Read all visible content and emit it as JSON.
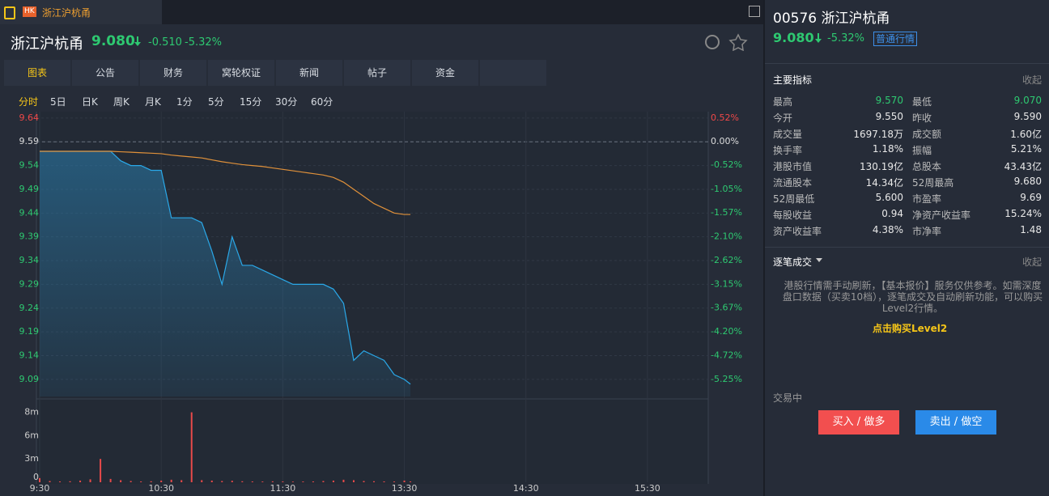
{
  "tab": {
    "badge": "HK",
    "title": "浙江沪杭甬"
  },
  "header": {
    "name": "浙江沪杭甬",
    "price": "9.080",
    "change": "-0.510",
    "change_pct": "-5.32%"
  },
  "nav_tabs": [
    "图表",
    "公告",
    "财务",
    "窝轮权证",
    "新闻",
    "帖子",
    "资金"
  ],
  "periods": [
    "分时",
    "5日",
    "日K",
    "周K",
    "月K",
    "1分",
    "5分",
    "15分",
    "30分",
    "60分"
  ],
  "chart_data": [
    {
      "type": "line",
      "x": [
        "9:30",
        "9:35",
        "9:40",
        "9:45",
        "9:50",
        "9:55",
        "10:00",
        "10:05",
        "10:10",
        "10:15",
        "10:20",
        "10:25",
        "10:30",
        "10:35",
        "10:40",
        "10:45",
        "10:50",
        "10:55",
        "11:00",
        "11:05",
        "11:10",
        "11:15",
        "11:20",
        "11:25",
        "11:30",
        "11:35",
        "11:40",
        "11:45",
        "11:50",
        "11:55",
        "12:00",
        "13:05",
        "13:10",
        "13:15",
        "13:20",
        "13:25",
        "13:30",
        "13:33"
      ],
      "series": [
        {
          "color": "#2aa8e8",
          "area": true,
          "values": [
            9.57,
            9.57,
            9.57,
            9.57,
            9.57,
            9.57,
            9.57,
            9.57,
            9.55,
            9.54,
            9.54,
            9.53,
            9.53,
            9.43,
            9.43,
            9.43,
            9.42,
            9.36,
            9.29,
            9.39,
            9.33,
            9.33,
            9.32,
            9.31,
            9.3,
            9.29,
            9.29,
            9.29,
            9.29,
            9.28,
            9.25,
            9.13,
            9.15,
            9.14,
            9.13,
            9.1,
            9.09,
            9.08
          ]
        },
        {
          "color": "#e0913a",
          "values": [
            9.57,
            9.57,
            9.57,
            9.57,
            9.57,
            9.57,
            9.57,
            9.57,
            9.569,
            9.568,
            9.567,
            9.566,
            9.565,
            9.562,
            9.56,
            9.558,
            9.556,
            9.552,
            9.548,
            9.545,
            9.542,
            9.54,
            9.538,
            9.535,
            9.532,
            9.529,
            9.526,
            9.523,
            9.52,
            9.515,
            9.505,
            9.49,
            9.475,
            9.46,
            9.45,
            9.44,
            9.437,
            9.437
          ]
        }
      ],
      "xlim": [
        "9:30",
        "16:00"
      ],
      "ylim": [
        9.054,
        9.65
      ],
      "yticks": [
        9.64,
        9.59,
        9.54,
        9.49,
        9.44,
        9.39,
        9.34,
        9.29,
        9.24,
        9.19,
        9.14,
        9.09
      ],
      "baseline": 9.59,
      "y2lim": [
        -5.625,
        0.627
      ],
      "y2ticks": [
        {
          "value": 0.52,
          "label": "0.52%"
        },
        {
          "value": 0,
          "label": "0.00%"
        },
        {
          "value": -0.52,
          "label": "-0.52%"
        },
        {
          "value": -1.05,
          "label": "-1.05%"
        },
        {
          "value": -1.57,
          "label": "-1.57%"
        },
        {
          "value": -2.1,
          "label": "-2.10%"
        },
        {
          "value": -2.62,
          "label": "-2.62%"
        },
        {
          "value": -3.15,
          "label": "-3.15%"
        },
        {
          "value": -3.67,
          "label": "-3.67%"
        },
        {
          "value": -4.2,
          "label": "-4.20%"
        },
        {
          "value": -4.72,
          "label": "-4.72%"
        },
        {
          "value": -5.25,
          "label": "-5.25%"
        }
      ],
      "grid": true
    },
    {
      "type": "bar",
      "color": "#e84a4a",
      "values": [
        500000,
        150000,
        100000,
        120000,
        200000,
        350000,
        2800000,
        400000,
        250000,
        150000,
        100000,
        120000,
        200000,
        300000,
        250000,
        8400000,
        250000,
        200000,
        150000,
        180000,
        120000,
        100000,
        90000,
        110000,
        100000,
        80000,
        90000,
        100000,
        150000,
        200000,
        300000,
        250000,
        150000,
        120000,
        100000,
        90000,
        200000,
        100000
      ],
      "ylim": [
        0,
        9330000
      ],
      "yticks": [
        0,
        {
          "value": 2800000,
          "label": "3m"
        },
        {
          "value": 5600000,
          "label": "6m"
        },
        {
          "value": 8400000,
          "label": "8m"
        }
      ],
      "xticks": [
        "9:30",
        "10:30",
        "11:30",
        "13:30",
        "14:30",
        "15:30"
      ]
    }
  ],
  "side": {
    "title": "00576 浙江沪杭甬",
    "price": "9.080",
    "change_pct": "-5.32%",
    "badge": "普通行情",
    "indicators": {
      "title": "主要指标",
      "collapse": "收起",
      "rows": [
        [
          "最高",
          "9.570",
          "最低",
          "9.070"
        ],
        [
          "今开",
          "9.550",
          "昨收",
          "9.590"
        ],
        [
          "成交量",
          "1697.18万",
          "成交额",
          "1.60亿"
        ],
        [
          "换手率",
          "1.18%",
          "振幅",
          "5.21%"
        ],
        [
          "港股市值",
          "130.19亿",
          "总股本",
          "43.43亿"
        ],
        [
          "流通股本",
          "14.34亿",
          "52周最高",
          "9.680"
        ],
        [
          "52周最低",
          "5.600",
          "市盈率",
          "9.69"
        ],
        [
          "每股收益",
          "0.94",
          "净资产收益率",
          "15.24%"
        ],
        [
          "资产收益率",
          "4.38%",
          "市净率",
          "1.48"
        ]
      ]
    },
    "trades": {
      "title": "逐笔成交",
      "collapse": "收起",
      "notice": "港股行情需手动刷新，【基本报价】服务仅供参考。如需深度盘口数据（买卖10档），逐笔成交及自动刷新功能，可以购买Level2行情。",
      "link": "点击购买Level2"
    },
    "status": "交易中",
    "buttons": [
      "买入 / 做多",
      "卖出 / 做空"
    ]
  }
}
